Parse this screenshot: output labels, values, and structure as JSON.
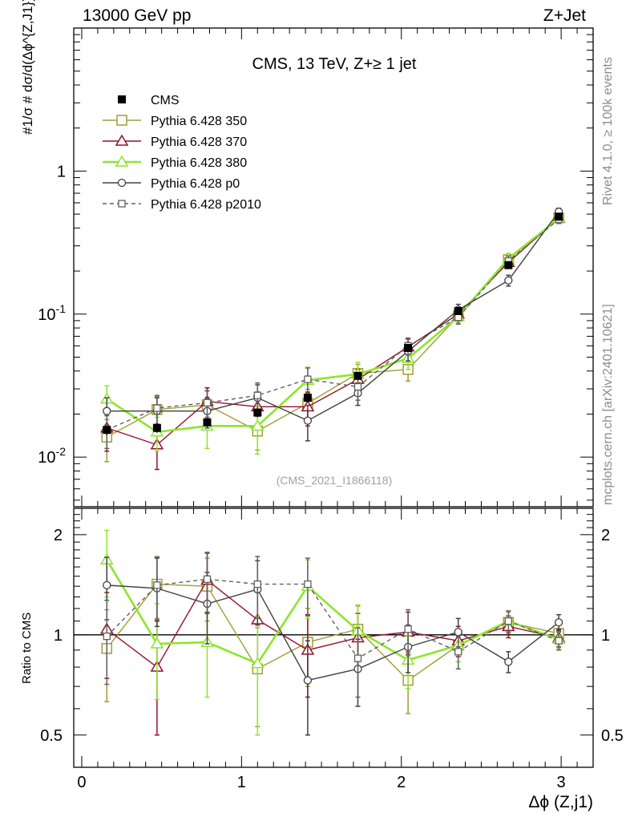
{
  "header": {
    "left_label": "13000 GeV pp",
    "right_label": "Z+Jet"
  },
  "side_labels": {
    "rivet": "Rivet 4.1.0, ≥ 100k events",
    "mcplots": "mcplots.cern.ch [arXiv:2401.10621]"
  },
  "chart_data": {
    "type": "line",
    "title": "CMS, 13 TeV, Z+≥ 1 jet",
    "analysis_label": "(CMS_2021_I1866118)",
    "xlabel": "Δϕ (Z,j1)",
    "ylabel_main": "#1/σ # dσ/d(Δϕ^{Z,J1})",
    "ylabel_ratio": "Ratio to CMS",
    "xlim": [
      -0.05,
      3.2
    ],
    "ylim_main": [
      0.0045,
      10
    ],
    "ylim_ratio": [
      0.4,
      2.4
    ],
    "yscale": "log",
    "x_ticks": [
      "0",
      "1",
      "2",
      "3"
    ],
    "y_ticks_main": [
      "1",
      "10^-1",
      "10^-2"
    ],
    "y_ticks_ratio": [
      "2",
      "1",
      "0.5"
    ],
    "x": [
      0.157,
      0.471,
      0.785,
      1.1,
      1.414,
      1.728,
      2.042,
      2.356,
      2.67,
      2.985
    ],
    "data": {
      "name": "CMS",
      "values": [
        0.0155,
        0.016,
        0.0175,
        0.0205,
        0.026,
        0.037,
        0.058,
        0.105,
        0.22,
        0.48
      ],
      "errors": [
        0.0012,
        0.0012,
        0.0012,
        0.0014,
        0.0017,
        0.0022,
        0.003,
        0.005,
        0.01,
        0.02
      ]
    },
    "series": [
      {
        "name": "Pythia 6.428 350",
        "color": "#a19d33",
        "marker": "square",
        "dash": "",
        "values": [
          0.0138,
          0.0215,
          0.0232,
          0.0152,
          0.0238,
          0.0385,
          0.041,
          0.097,
          0.24,
          0.47
        ],
        "errors": [
          0.0045,
          0.005,
          0.006,
          0.004,
          0.006,
          0.006,
          0.007,
          0.01,
          0.02,
          0.03
        ]
      },
      {
        "name": "Pythia 6.428 370",
        "color": "#990f2a",
        "marker": "triangle",
        "dash": "",
        "values": [
          0.016,
          0.0122,
          0.0245,
          0.0225,
          0.0225,
          0.035,
          0.059,
          0.1,
          0.23,
          0.47
        ],
        "errors": [
          0.005,
          0.004,
          0.006,
          0.006,
          0.006,
          0.006,
          0.008,
          0.01,
          0.02,
          0.03
        ]
      },
      {
        "name": "Pythia 6.428 380",
        "color": "#8ce62c",
        "marker": "triangle",
        "dash": "",
        "values": [
          0.0255,
          0.015,
          0.0165,
          0.0165,
          0.0345,
          0.038,
          0.049,
          0.096,
          0.245,
          0.465
        ],
        "errors": [
          0.006,
          0.004,
          0.005,
          0.006,
          0.008,
          0.008,
          0.008,
          0.01,
          0.02,
          0.03
        ]
      },
      {
        "name": "Pythia 6.428 p0",
        "color": "#404040",
        "marker": "circle",
        "dash": "",
        "values": [
          0.021,
          0.021,
          0.021,
          0.026,
          0.018,
          0.028,
          0.055,
          0.107,
          0.172,
          0.52
        ],
        "errors": [
          0.005,
          0.005,
          0.005,
          0.006,
          0.005,
          0.005,
          0.008,
          0.01,
          0.015,
          0.03
        ]
      },
      {
        "name": "Pythia 6.428 p2010",
        "color": "#606060",
        "marker": "square-small",
        "dash": "5,4",
        "values": [
          0.0155,
          0.022,
          0.024,
          0.027,
          0.035,
          0.031,
          0.06,
          0.095,
          0.235,
          0.46
        ],
        "errors": [
          0.004,
          0.005,
          0.005,
          0.006,
          0.007,
          0.006,
          0.008,
          0.01,
          0.02,
          0.03
        ]
      }
    ],
    "ratio_series": [
      {
        "name": "Pythia 6.428 350",
        "values": [
          0.91,
          1.42,
          1.4,
          0.79,
          0.95,
          1.04,
          0.73,
          0.93,
          1.09,
          1.01
        ],
        "errors": [
          0.28,
          0.3,
          0.3,
          0.26,
          0.25,
          0.18,
          0.15,
          0.1,
          0.08,
          0.06
        ]
      },
      {
        "name": "Pythia 6.428 370",
        "values": [
          1.04,
          0.8,
          1.46,
          1.11,
          0.9,
          0.98,
          1.02,
          0.96,
          1.06,
          0.98
        ],
        "errors": [
          0.3,
          0.3,
          0.3,
          0.28,
          0.25,
          0.18,
          0.15,
          0.1,
          0.08,
          0.06
        ]
      },
      {
        "name": "Pythia 6.428 380",
        "values": [
          1.68,
          0.94,
          0.95,
          0.82,
          1.4,
          1.03,
          0.84,
          0.93,
          1.1,
          0.97
        ],
        "errors": [
          0.38,
          0.3,
          0.3,
          0.32,
          0.28,
          0.2,
          0.15,
          0.1,
          0.08,
          0.06
        ]
      },
      {
        "name": "Pythia 6.428 p0",
        "values": [
          1.41,
          1.38,
          1.24,
          1.37,
          0.73,
          0.79,
          0.92,
          1.02,
          0.83,
          1.09
        ],
        "errors": [
          0.3,
          0.32,
          0.3,
          0.3,
          0.23,
          0.18,
          0.15,
          0.1,
          0.06,
          0.06
        ]
      },
      {
        "name": "Pythia 6.428 p2010",
        "values": [
          0.99,
          1.41,
          1.47,
          1.42,
          1.42,
          0.85,
          1.04,
          0.89,
          1.1,
          0.96
        ],
        "errors": [
          0.28,
          0.3,
          0.3,
          0.3,
          0.28,
          0.2,
          0.15,
          0.1,
          0.08,
          0.06
        ]
      }
    ]
  }
}
